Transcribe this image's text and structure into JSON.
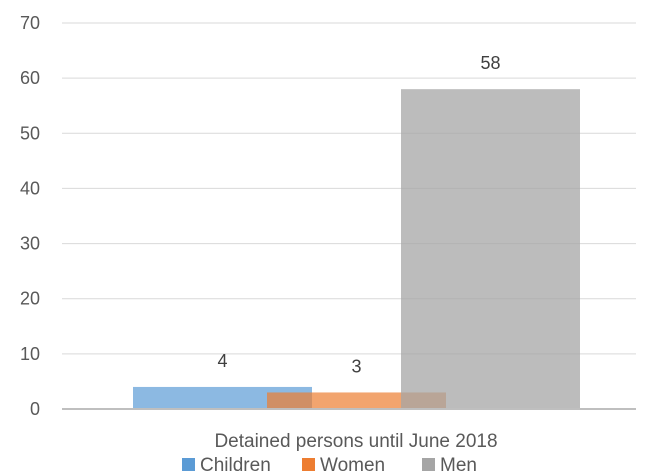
{
  "chart_data": {
    "type": "bar",
    "categories": [
      "Detained persons until June 2018"
    ],
    "series": [
      {
        "name": "Children",
        "values": [
          4
        ],
        "color": "#5b9bd5"
      },
      {
        "name": "Women",
        "values": [
          3
        ],
        "color": "#ed7d31"
      },
      {
        "name": "Men",
        "values": [
          58
        ],
        "color": "#a5a5a5"
      }
    ],
    "ylim": [
      0,
      70
    ],
    "yticks": [
      0,
      10,
      20,
      30,
      40,
      50,
      60,
      70
    ],
    "grid": true,
    "legend": "bottom",
    "data_labels": true,
    "title": "",
    "xlabel": "",
    "ylabel": ""
  }
}
